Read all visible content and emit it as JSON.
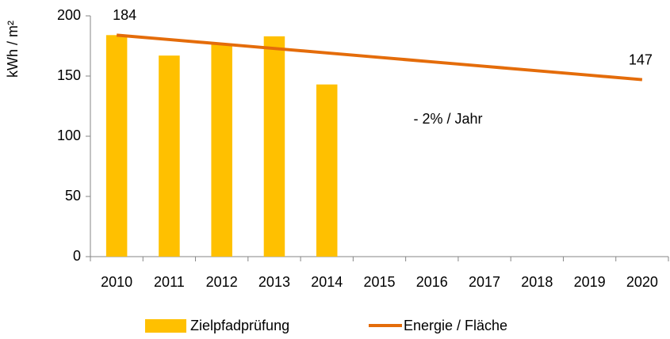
{
  "chart_data": {
    "type": "bar-line",
    "y_label": "kWh / m²",
    "annotation": "- 2% / Jahr",
    "categories": [
      "2010",
      "2011",
      "2012",
      "2013",
      "2014",
      "2015",
      "2016",
      "2017",
      "2018",
      "2019",
      "2020"
    ],
    "series": [
      {
        "name": "Zielpfadprüfung",
        "type": "bar",
        "color": "#FFC000",
        "values": [
          184,
          167,
          177,
          183,
          143,
          null,
          null,
          null,
          null,
          null,
          null
        ]
      },
      {
        "name": "Energie / Fläche",
        "type": "line",
        "color": "#E46C0A",
        "values": [
          184,
          180.3,
          176.6,
          172.9,
          169.2,
          165.5,
          161.8,
          158.1,
          154.4,
          150.7,
          147
        ],
        "value_labels": [
          "184",
          null,
          null,
          null,
          null,
          null,
          null,
          null,
          null,
          null,
          "147"
        ]
      }
    ],
    "ylim": [
      0,
      200
    ],
    "yticks": [
      0,
      50,
      100,
      150,
      200
    ],
    "grid": false
  }
}
